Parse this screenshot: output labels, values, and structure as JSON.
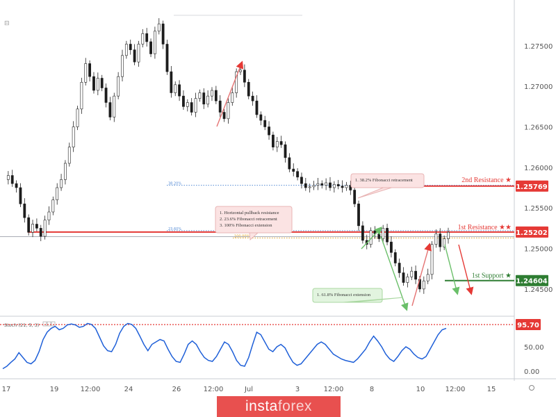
{
  "chart_data": {
    "type": "candlestick",
    "xlabel": "",
    "ylabel": "",
    "y_range": [
      1.2425,
      1.2785
    ],
    "y_ticks": [
      "1.27500",
      "1.27000",
      "1.26500",
      "1.26000",
      "1.25500",
      "1.25000",
      "1.24500"
    ],
    "y_tick_values": [
      1.275,
      1.27,
      1.265,
      1.26,
      1.255,
      1.25,
      1.245
    ],
    "x_ticks": [
      "17",
      "19",
      "12:00",
      "24",
      "26",
      "12:00",
      "Jul",
      "3",
      "12:00",
      "8",
      "10",
      "12:00",
      "15"
    ],
    "price_path": [
      1.2585,
      1.259,
      1.258,
      1.2575,
      1.2555,
      1.2538,
      1.252,
      1.253,
      1.2525,
      1.2515,
      1.2535,
      1.2545,
      1.256,
      1.2575,
      1.2585,
      1.2605,
      1.2625,
      1.265,
      1.2672,
      1.2705,
      1.2728,
      1.2712,
      1.2695,
      1.271,
      1.2698,
      1.268,
      1.2662,
      1.2688,
      1.2712,
      1.2738,
      1.2752,
      1.2745,
      1.273,
      1.2752,
      1.2765,
      1.2755,
      1.274,
      1.2768,
      1.2777,
      1.2752,
      1.2718,
      1.2692,
      1.2702,
      1.2688,
      1.2675,
      1.268,
      1.2668,
      1.2685,
      1.2692,
      1.2678,
      1.2688,
      1.2695,
      1.2682,
      1.2668,
      1.266,
      1.268,
      1.2692,
      1.2718,
      1.272,
      1.2705,
      1.2688,
      1.2682,
      1.2665,
      1.2658,
      1.265,
      1.264,
      1.2625,
      1.2632,
      1.2628,
      1.2612,
      1.2598,
      1.2595,
      1.2588,
      1.258,
      1.2575,
      1.2576,
      1.2578,
      1.258,
      1.2578,
      1.2581,
      1.2575,
      1.2579,
      1.2577,
      1.2575,
      1.2578,
      1.2572,
      1.2555,
      1.2528,
      1.251,
      1.2505,
      1.2522,
      1.2518,
      1.2512,
      1.2525,
      1.2508,
      1.2495,
      1.2482,
      1.247,
      1.2458,
      1.2465,
      1.2472,
      1.2462,
      1.245,
      1.246,
      1.2468,
      1.2505,
      1.2518,
      1.2502,
      1.2512,
      1.252
    ],
    "horizontal_levels": [
      {
        "name": "2nd Resistance",
        "stars": "★",
        "value": 1.25769,
        "value_label": "1.25769",
        "color": "#e53935"
      },
      {
        "name": "1st Resistance",
        "stars": "★★",
        "value": 1.25202,
        "value_label": "1.25202",
        "color": "#e53935"
      },
      {
        "name": "1st Support",
        "stars": "★",
        "value": 1.24604,
        "value_label": "1.24604",
        "color": "#2e7d32"
      }
    ],
    "fibonacci_levels": [
      {
        "label": "38.20%",
        "value": 1.2578
      },
      {
        "label": "23.60%",
        "value": 1.2522
      },
      {
        "label": "100.00%",
        "value": 1.2513
      }
    ],
    "annotations": [
      "1. 38.2% Fibonacci retracement",
      "1. Horizontal pullback resistance",
      "2. 23.6% Fibonacci retracement",
      "3. 100% Fibonacci extension",
      "1. 61.8% Fibonacci extension"
    ],
    "stochastic": {
      "title": "Stoch (21, 5, 3)",
      "y_range": [
        0,
        100
      ],
      "y_ticks": [
        "50.00",
        "0.00"
      ],
      "y_tick_values": [
        50,
        0
      ],
      "level": 95.7,
      "level_label": "95.70",
      "values": [
        5,
        10,
        18,
        25,
        38,
        28,
        18,
        15,
        22,
        40,
        65,
        80,
        88,
        92,
        85,
        88,
        95,
        97,
        95,
        90,
        92,
        98,
        96,
        88,
        70,
        52,
        42,
        40,
        55,
        78,
        92,
        98,
        96,
        88,
        72,
        55,
        42,
        55,
        60,
        65,
        62,
        45,
        30,
        20,
        18,
        35,
        55,
        62,
        55,
        40,
        28,
        22,
        20,
        30,
        45,
        60,
        55,
        40,
        22,
        12,
        10,
        28,
        55,
        80,
        75,
        60,
        45,
        40,
        50,
        55,
        48,
        32,
        18,
        12,
        15,
        25,
        35,
        45,
        55,
        60,
        55,
        45,
        35,
        30,
        25,
        22,
        20,
        18,
        25,
        35,
        45,
        60,
        72,
        62,
        50,
        35,
        25,
        20,
        30,
        42,
        50,
        45,
        35,
        28,
        25,
        30,
        45,
        60,
        75,
        85,
        88
      ]
    }
  },
  "brand": {
    "name_a": "insta",
    "name_b": "forex"
  }
}
